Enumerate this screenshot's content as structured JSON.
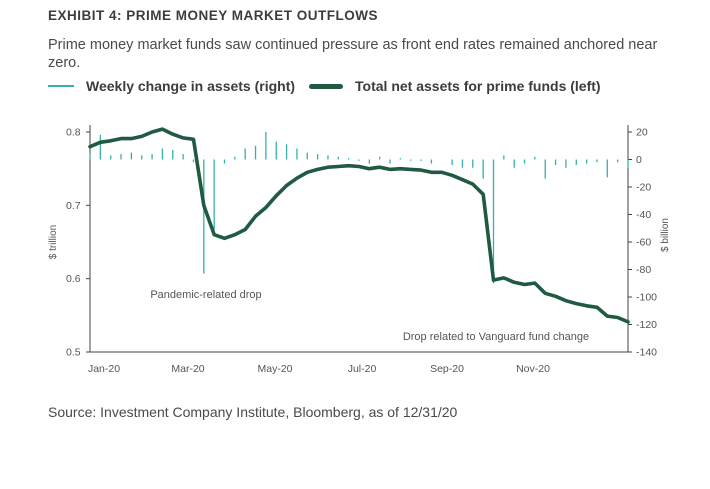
{
  "title": "EXHIBIT 4: PRIME MONEY MARKET OUTFLOWS",
  "subtitle": "Prime money market funds saw continued pressure as front end rates remained anchored near zero.",
  "source": "Source: Investment Company Institute, Bloomberg, as of 12/31/20",
  "colors": {
    "weekly": "#35b0ad",
    "total": "#1f5a41",
    "axis": "#444444",
    "text": "#555555"
  },
  "chart_data": {
    "type": "line",
    "legend_position": "top-left",
    "grid": false,
    "left_axis": {
      "label": "$ trillion",
      "ylim": [
        0.5,
        0.8
      ],
      "ticks": [
        "0.5",
        "0.6",
        "0.7",
        "0.8"
      ]
    },
    "right_axis": {
      "label": "$ billion",
      "ylim": [
        -140,
        20
      ],
      "ticks": [
        "20",
        "0",
        "-20",
        "-40",
        "-60",
        "-80",
        "-100",
        "-120",
        "-140"
      ]
    },
    "x_ticks": [
      "Jan-20",
      "Mar-20",
      "May-20",
      "Jul-20",
      "Sep-20",
      "Nov-20"
    ],
    "series": [
      {
        "name": "Total net assets for prime funds (left)",
        "axis": "left",
        "style": "thick-line",
        "values": [
          0.78,
          0.786,
          0.788,
          0.791,
          0.791,
          0.794,
          0.8,
          0.804,
          0.797,
          0.792,
          0.79,
          0.7,
          0.66,
          0.655,
          0.66,
          0.667,
          0.685,
          0.697,
          0.713,
          0.727,
          0.737,
          0.745,
          0.749,
          0.752,
          0.753,
          0.754,
          0.753,
          0.75,
          0.752,
          0.749,
          0.75,
          0.749,
          0.748,
          0.745,
          0.745,
          0.741,
          0.735,
          0.729,
          0.715,
          0.598,
          0.601,
          0.595,
          0.592,
          0.594,
          0.58,
          0.576,
          0.57,
          0.566,
          0.563,
          0.561,
          0.549,
          0.547,
          0.541
        ]
      },
      {
        "name": "Weekly change in assets (right)",
        "axis": "right",
        "style": "thin-bars",
        "values": [
          4,
          18,
          3,
          4,
          5,
          3,
          4,
          8,
          7,
          4,
          -2,
          -83,
          -51,
          -3,
          2,
          8,
          10,
          20,
          13,
          11,
          8,
          5,
          4,
          3,
          2,
          1,
          -1,
          -3,
          2,
          -3,
          1,
          -1,
          -1,
          -3,
          0,
          -4,
          -6,
          -6,
          -14,
          -90,
          3,
          -6,
          -3,
          2,
          -14,
          -4,
          -6,
          -4,
          -3,
          -2,
          -13,
          -2,
          -6
        ]
      }
    ],
    "annotations": [
      "Pandemic-related drop",
      "Drop related to Vanguard fund change"
    ]
  }
}
